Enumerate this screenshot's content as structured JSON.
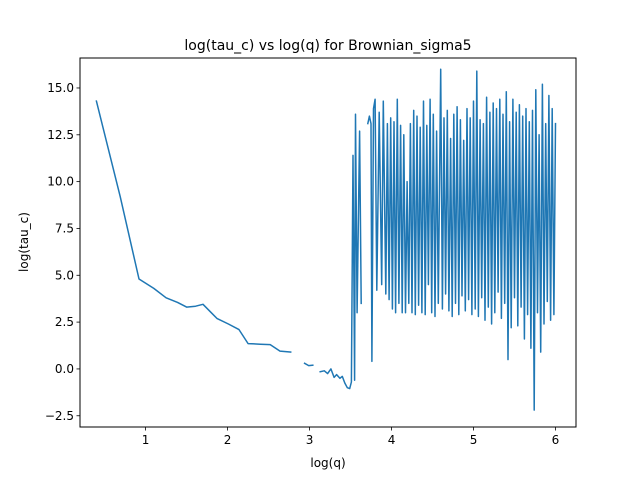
{
  "chart_data": {
    "type": "line",
    "title": "log(tau_c) vs log(q) for Brownian_sigma5",
    "xlabel": "log(q)",
    "ylabel": "log(tau_c)",
    "xlim": [
      0.2,
      6.25
    ],
    "ylim": [
      -3.1,
      16.6
    ],
    "xticks": [
      {
        "value": 1,
        "label": "1"
      },
      {
        "value": 2,
        "label": "2"
      },
      {
        "value": 3,
        "label": "3"
      },
      {
        "value": 4,
        "label": "4"
      },
      {
        "value": 5,
        "label": "5"
      },
      {
        "value": 6,
        "label": "6"
      }
    ],
    "yticks": [
      {
        "value": -2.5,
        "label": "−2.5"
      },
      {
        "value": 0.0,
        "label": "0.0"
      },
      {
        "value": 2.5,
        "label": "2.5"
      },
      {
        "value": 5.0,
        "label": "5.0"
      },
      {
        "value": 7.5,
        "label": "7.5"
      },
      {
        "value": 10.0,
        "label": "10.0"
      },
      {
        "value": 12.5,
        "label": "12.5"
      },
      {
        "value": 15.0,
        "label": "15.0"
      }
    ],
    "grid": false,
    "line_color": "#1f77b4",
    "series": [
      {
        "segments": [
          [
            [
              0.4,
              14.3
            ],
            [
              0.69,
              9.2
            ],
            [
              0.92,
              4.8
            ],
            [
              1.1,
              4.3
            ],
            [
              1.25,
              3.8
            ],
            [
              1.39,
              3.55
            ],
            [
              1.5,
              3.3
            ],
            [
              1.61,
              3.35
            ],
            [
              1.7,
              3.45
            ],
            [
              1.79,
              3.05
            ],
            [
              1.87,
              2.7
            ],
            [
              2.01,
              2.4
            ],
            [
              2.14,
              2.1
            ],
            [
              2.25,
              1.35
            ],
            [
              2.4,
              1.32
            ],
            [
              2.52,
              1.3
            ],
            [
              2.64,
              0.95
            ],
            [
              2.77,
              0.9
            ]
          ],
          [
            [
              2.94,
              0.3
            ],
            [
              2.99,
              0.18
            ],
            [
              3.04,
              0.2
            ]
          ],
          [
            [
              3.13,
              -0.15
            ],
            [
              3.18,
              -0.1
            ],
            [
              3.22,
              -0.25
            ],
            [
              3.26,
              0.0
            ],
            [
              3.3,
              -0.45
            ],
            [
              3.33,
              -0.3
            ],
            [
              3.37,
              -0.5
            ],
            [
              3.4,
              -0.4
            ],
            [
              3.43,
              -0.75
            ],
            [
              3.46,
              -1.0
            ],
            [
              3.49,
              -1.05
            ],
            [
              3.51,
              -0.7
            ],
            [
              3.53,
              11.4
            ],
            [
              3.55,
              -0.6
            ],
            [
              3.56,
              13.6
            ],
            [
              3.58,
              3.0
            ],
            [
              3.61,
              12.7
            ],
            [
              3.63,
              3.5
            ]
          ],
          [
            [
              3.71,
              13.1
            ],
            [
              3.73,
              13.5
            ],
            [
              3.75,
              13.1
            ],
            [
              3.76,
              0.4
            ],
            [
              3.78,
              13.9
            ],
            [
              3.8,
              14.4
            ],
            [
              3.82,
              4.2
            ],
            [
              3.85,
              13.7
            ],
            [
              3.88,
              4.5
            ],
            [
              3.9,
              14.3
            ],
            [
              3.93,
              4.0
            ],
            [
              3.95,
              13.1
            ],
            [
              3.97,
              3.7
            ],
            [
              3.99,
              13.4
            ],
            [
              4.01,
              3.2
            ],
            [
              4.03,
              13.2
            ],
            [
              4.05,
              3.0
            ],
            [
              4.07,
              14.4
            ],
            [
              4.09,
              3.5
            ],
            [
              4.11,
              13.0
            ],
            [
              4.13,
              3.0
            ],
            [
              4.15,
              12.5
            ],
            [
              4.17,
              3.0
            ],
            [
              4.19,
              10.0
            ],
            [
              4.21,
              3.5
            ],
            [
              4.23,
              13.1
            ],
            [
              4.25,
              3.0
            ],
            [
              4.27,
              13.8
            ],
            [
              4.29,
              2.9
            ],
            [
              4.31,
              13.5
            ],
            [
              4.33,
              3.4
            ],
            [
              4.35,
              12.9
            ],
            [
              4.37,
              3.0
            ],
            [
              4.39,
              14.3
            ],
            [
              4.41,
              2.9
            ],
            [
              4.43,
              13.0
            ],
            [
              4.45,
              4.5
            ],
            [
              4.47,
              14.4
            ],
            [
              4.49,
              3.0
            ],
            [
              4.51,
              13.6
            ],
            [
              4.53,
              2.8
            ],
            [
              4.55,
              12.7
            ],
            [
              4.57,
              3.5
            ],
            [
              4.6,
              16.0
            ],
            [
              4.62,
              3.2
            ],
            [
              4.64,
              13.4
            ],
            [
              4.66,
              4.0
            ],
            [
              4.68,
              13.8
            ],
            [
              4.7,
              3.1
            ],
            [
              4.72,
              12.3
            ],
            [
              4.74,
              2.8
            ],
            [
              4.76,
              13.6
            ],
            [
              4.78,
              3.5
            ],
            [
              4.8,
              14.0
            ],
            [
              4.82,
              2.9
            ],
            [
              4.84,
              13.3
            ],
            [
              4.86,
              3.9
            ],
            [
              4.88,
              12.2
            ],
            [
              4.9,
              3.1
            ],
            [
              4.92,
              13.9
            ],
            [
              4.94,
              3.7
            ],
            [
              4.96,
              13.4
            ],
            [
              4.98,
              2.9
            ],
            [
              5.0,
              14.3
            ],
            [
              5.02,
              3.2
            ],
            [
              5.04,
              15.9
            ],
            [
              5.06,
              2.8
            ],
            [
              5.08,
              13.3
            ],
            [
              5.1,
              3.8
            ],
            [
              5.12,
              13.1
            ],
            [
              5.14,
              2.6
            ],
            [
              5.16,
              14.5
            ],
            [
              5.18,
              3.3
            ],
            [
              5.2,
              13.7
            ],
            [
              5.22,
              2.4
            ],
            [
              5.24,
              14.2
            ],
            [
              5.26,
              3.0
            ],
            [
              5.28,
              13.9
            ],
            [
              5.3,
              4.1
            ],
            [
              5.32,
              14.4
            ],
            [
              5.34,
              2.7
            ],
            [
              5.36,
              13.6
            ],
            [
              5.38,
              3.5
            ],
            [
              5.4,
              14.8
            ],
            [
              5.42,
              0.5
            ],
            [
              5.44,
              13.2
            ],
            [
              5.46,
              2.2
            ],
            [
              5.48,
              14.4
            ],
            [
              5.5,
              3.8
            ],
            [
              5.52,
              13.7
            ],
            [
              5.54,
              2.3
            ],
            [
              5.56,
              14.1
            ],
            [
              5.58,
              3.3
            ],
            [
              5.6,
              13.5
            ],
            [
              5.62,
              1.6
            ],
            [
              5.64,
              13.9
            ],
            [
              5.66,
              2.9
            ],
            [
              5.68,
              13.2
            ],
            [
              5.7,
              1.1
            ],
            [
              5.72,
              13.8
            ],
            [
              5.74,
              -2.2
            ],
            [
              5.76,
              14.9
            ],
            [
              5.78,
              3.0
            ],
            [
              5.8,
              12.5
            ],
            [
              5.82,
              0.9
            ],
            [
              5.84,
              15.2
            ],
            [
              5.86,
              2.4
            ],
            [
              5.88,
              13.1
            ],
            [
              5.9,
              3.6
            ],
            [
              5.92,
              14.6
            ],
            [
              5.94,
              2.6
            ],
            [
              5.96,
              13.9
            ],
            [
              5.98,
              2.9
            ],
            [
              6.0,
              13.1
            ]
          ]
        ]
      }
    ]
  }
}
